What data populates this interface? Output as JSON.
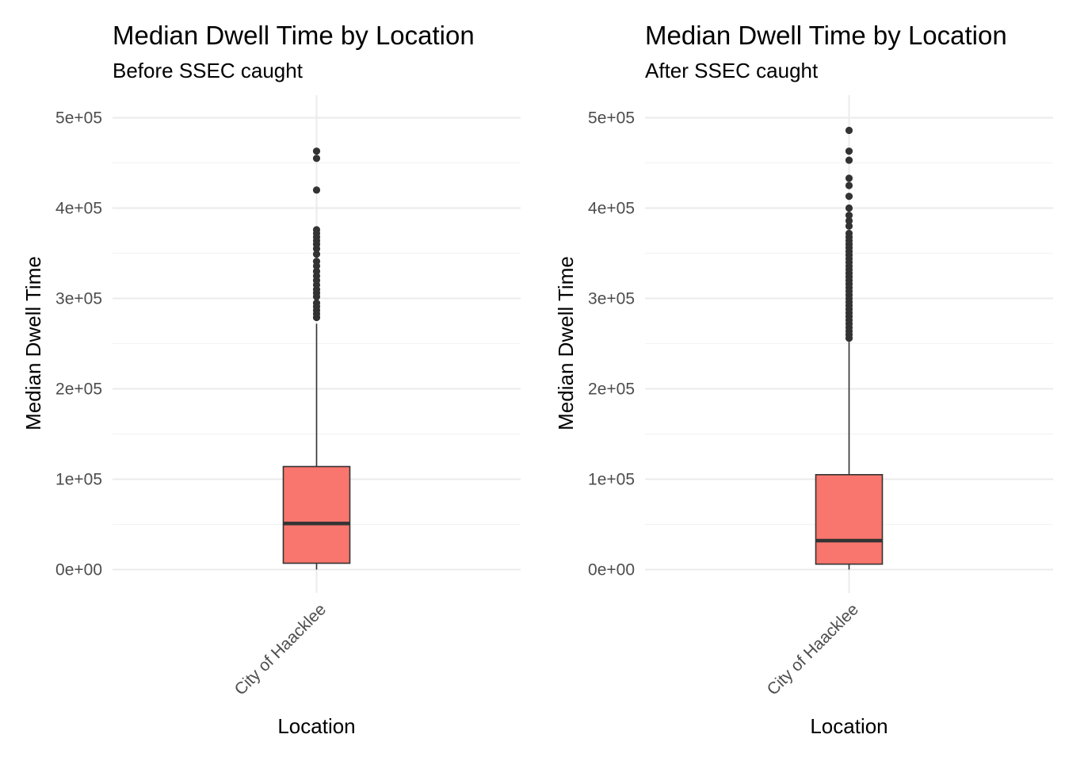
{
  "chart_data": [
    {
      "type": "boxplot",
      "title": "Median Dwell Time by Location",
      "subtitle": "Before SSEC caught",
      "xlabel": "Location",
      "ylabel": "Median Dwell Time",
      "categories": [
        "City of Haacklee"
      ],
      "y_ticks": [
        "0e+00",
        "1e+05",
        "2e+05",
        "3e+05",
        "4e+05",
        "5e+05"
      ],
      "ylim": [
        -28000,
        528000
      ],
      "grid": true,
      "fill_color": "#F8766D",
      "boxes": [
        {
          "category": "City of Haacklee",
          "whisker_low": 0,
          "q1": 7000,
          "median": 51000,
          "q3": 114000,
          "whisker_high": 272000,
          "outliers": [
            279000,
            283000,
            287000,
            291000,
            295000,
            302000,
            306000,
            310000,
            315000,
            320000,
            325000,
            330000,
            336000,
            341000,
            349000,
            355000,
            360000,
            364000,
            368000,
            372000,
            376000,
            420000,
            455000,
            463000
          ]
        }
      ]
    },
    {
      "type": "boxplot",
      "title": "Median Dwell Time by Location",
      "subtitle": "After SSEC caught",
      "xlabel": "Location",
      "ylabel": "Median Dwell Time",
      "categories": [
        "City of Haacklee"
      ],
      "y_ticks": [
        "0e+00",
        "1e+05",
        "2e+05",
        "3e+05",
        "4e+05",
        "5e+05"
      ],
      "ylim": [
        -28000,
        528000
      ],
      "grid": true,
      "fill_color": "#F8766D",
      "boxes": [
        {
          "category": "City of Haacklee",
          "whisker_low": 0,
          "q1": 6000,
          "median": 32000,
          "q3": 105000,
          "whisker_high": 252000,
          "outliers": [
            256000,
            260000,
            264000,
            268000,
            272000,
            276000,
            280000,
            284000,
            288000,
            292000,
            296000,
            300000,
            304000,
            308000,
            312000,
            316000,
            320000,
            324000,
            328000,
            332000,
            336000,
            340000,
            344000,
            348000,
            352000,
            356000,
            360000,
            364000,
            368000,
            372000,
            380000,
            386000,
            392000,
            400000,
            413000,
            425000,
            433000,
            453000,
            463000,
            486000
          ]
        }
      ]
    }
  ]
}
